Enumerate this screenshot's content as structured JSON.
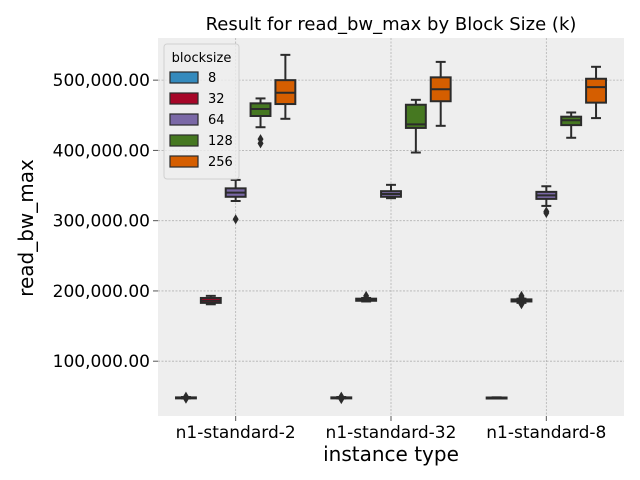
{
  "chart_data": {
    "type": "box",
    "title": "Result for read_bw_max by Block Size (k)",
    "xlabel": "instance type",
    "ylabel": "read_bw_max",
    "categories": [
      "n1-standard-2",
      "n1-standard-32",
      "n1-standard-8"
    ],
    "ylim": [
      22000,
      560000
    ],
    "yticks": [
      100000,
      200000,
      300000,
      400000,
      500000
    ],
    "ytick_labels": [
      "100,000.00",
      "200,000.00",
      "300,000.00",
      "400,000.00",
      "500,000.00"
    ],
    "grid": true,
    "legend": {
      "title": "blocksize",
      "position": "top-left"
    },
    "series": [
      {
        "name": "8",
        "color": "#348abd",
        "boxes": [
          {
            "whislo": 47000,
            "q1": 47500,
            "med": 48000,
            "q3": 48500,
            "whishi": 49000,
            "fliers": [
              46500,
              49500
            ]
          },
          {
            "whislo": 47000,
            "q1": 47500,
            "med": 48000,
            "q3": 48500,
            "whishi": 49000,
            "fliers": [
              46000,
              49500
            ]
          },
          {
            "whislo": 47500,
            "q1": 47800,
            "med": 48000,
            "q3": 48300,
            "whishi": 48600,
            "fliers": []
          }
        ]
      },
      {
        "name": "32",
        "color": "#a60628",
        "boxes": [
          {
            "whislo": 181000,
            "q1": 183000,
            "med": 186000,
            "q3": 190000,
            "whishi": 193000,
            "fliers": []
          },
          {
            "whislo": 185000,
            "q1": 186000,
            "med": 187500,
            "q3": 189000,
            "whishi": 190000,
            "fliers": [
              193000
            ]
          },
          {
            "whislo": 183000,
            "q1": 185000,
            "med": 186500,
            "q3": 188000,
            "whishi": 189000,
            "fliers": [
              181000,
              191000,
              193000
            ]
          }
        ]
      },
      {
        "name": "64",
        "color": "#7a68a6",
        "boxes": [
          {
            "whislo": 328000,
            "q1": 334000,
            "med": 340000,
            "q3": 346000,
            "whishi": 358000,
            "fliers": [
              302000
            ]
          },
          {
            "whislo": 332000,
            "q1": 334000,
            "med": 338000,
            "q3": 342000,
            "whishi": 351000,
            "fliers": []
          },
          {
            "whislo": 321000,
            "q1": 331000,
            "med": 336000,
            "q3": 341000,
            "whishi": 349000,
            "fliers": [
              311000,
              313000
            ]
          }
        ]
      },
      {
        "name": "128",
        "color": "#467821",
        "boxes": [
          {
            "whislo": 433000,
            "q1": 449000,
            "med": 459000,
            "q3": 467000,
            "whishi": 474000,
            "fliers": [
              410000,
              416000
            ]
          },
          {
            "whislo": 397000,
            "q1": 432000,
            "med": 437000,
            "q3": 465000,
            "whishi": 472000,
            "fliers": []
          },
          {
            "whislo": 418000,
            "q1": 436000,
            "med": 443000,
            "q3": 448000,
            "whishi": 454000,
            "fliers": []
          }
        ]
      },
      {
        "name": "256",
        "color": "#d55e00",
        "boxes": [
          {
            "whislo": 445000,
            "q1": 466000,
            "med": 482000,
            "q3": 500000,
            "whishi": 536000,
            "fliers": []
          },
          {
            "whislo": 435000,
            "q1": 470000,
            "med": 487000,
            "q3": 504000,
            "whishi": 526000,
            "fliers": []
          },
          {
            "whislo": 446000,
            "q1": 468000,
            "med": 490000,
            "q3": 502000,
            "whishi": 519000,
            "fliers": []
          }
        ]
      }
    ]
  }
}
